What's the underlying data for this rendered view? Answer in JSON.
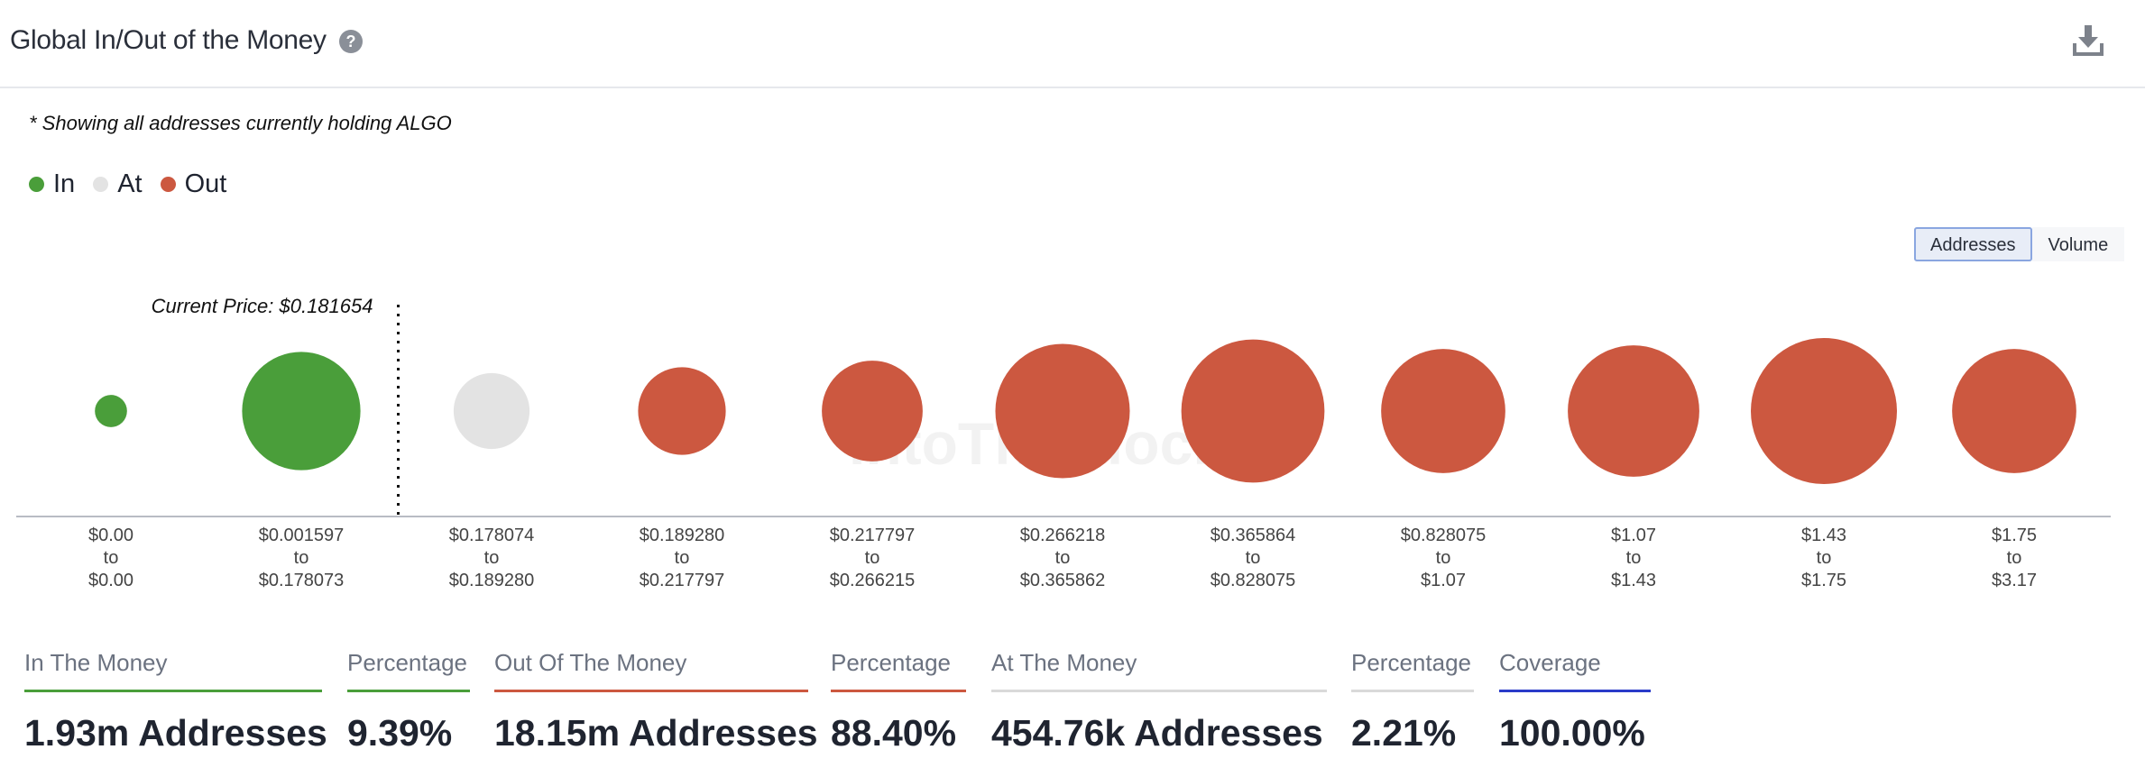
{
  "header": {
    "title": "Global In/Out of the Money"
  },
  "note": "* Showing all addresses currently holding ALGO",
  "legend": [
    {
      "label": "In",
      "color": "#4a9e3a"
    },
    {
      "label": "At",
      "color": "#e3e3e3"
    },
    {
      "label": "Out",
      "color": "#cc5840"
    }
  ],
  "toggle": {
    "addresses": "Addresses",
    "volume": "Volume"
  },
  "chart_data": {
    "type": "bubble",
    "title": "Global In/Out of the Money",
    "metric": "Addresses",
    "current_price_label": "Current Price: $0.181654",
    "current_price": 0.181654,
    "categories": [
      {
        "from": "$0.00",
        "to": "$0.00",
        "status": "In",
        "relative_size": 0.22
      },
      {
        "from": "$0.001597",
        "to": "$0.178073",
        "status": "In",
        "relative_size": 0.81
      },
      {
        "from": "$0.178074",
        "to": "$0.189280",
        "status": "At",
        "relative_size": 0.52
      },
      {
        "from": "$0.189280",
        "to": "$0.217797",
        "status": "Out",
        "relative_size": 0.6
      },
      {
        "from": "$0.217797",
        "to": "$0.266215",
        "status": "Out",
        "relative_size": 0.69
      },
      {
        "from": "$0.266218",
        "to": "$0.365862",
        "status": "Out",
        "relative_size": 0.92
      },
      {
        "from": "$0.365864",
        "to": "$0.828075",
        "status": "Out",
        "relative_size": 0.98
      },
      {
        "from": "$0.828075",
        "to": "$1.07",
        "status": "Out",
        "relative_size": 0.85
      },
      {
        "from": "$1.07",
        "to": "$1.43",
        "status": "Out",
        "relative_size": 0.9
      },
      {
        "from": "$1.43",
        "to": "$1.75",
        "status": "Out",
        "relative_size": 1.0
      },
      {
        "from": "$1.75",
        "to": "$3.17",
        "status": "Out",
        "relative_size": 0.85
      }
    ],
    "connector": "to",
    "colors": {
      "In": "#4a9e3a",
      "At": "#e3e3e3",
      "Out": "#cc5840"
    },
    "watermark": "IntoTheBlock"
  },
  "stats": [
    {
      "label": "In The Money",
      "value": "1.93m Addresses",
      "color": "#4a9e3a"
    },
    {
      "label": "Percentage",
      "value": "9.39%",
      "color": "#4a9e3a"
    },
    {
      "label": "Out Of The Money",
      "value": "18.15m Addresses",
      "color": "#cc5840"
    },
    {
      "label": "Percentage",
      "value": "88.40%",
      "color": "#cc5840"
    },
    {
      "label": "At The Money",
      "value": "454.76k Addresses",
      "color": "#d9d9d9"
    },
    {
      "label": "Percentage",
      "value": "2.21%",
      "color": "#d9d9d9"
    },
    {
      "label": "Coverage",
      "value": "100.00%",
      "color": "#2a3bc9"
    }
  ]
}
